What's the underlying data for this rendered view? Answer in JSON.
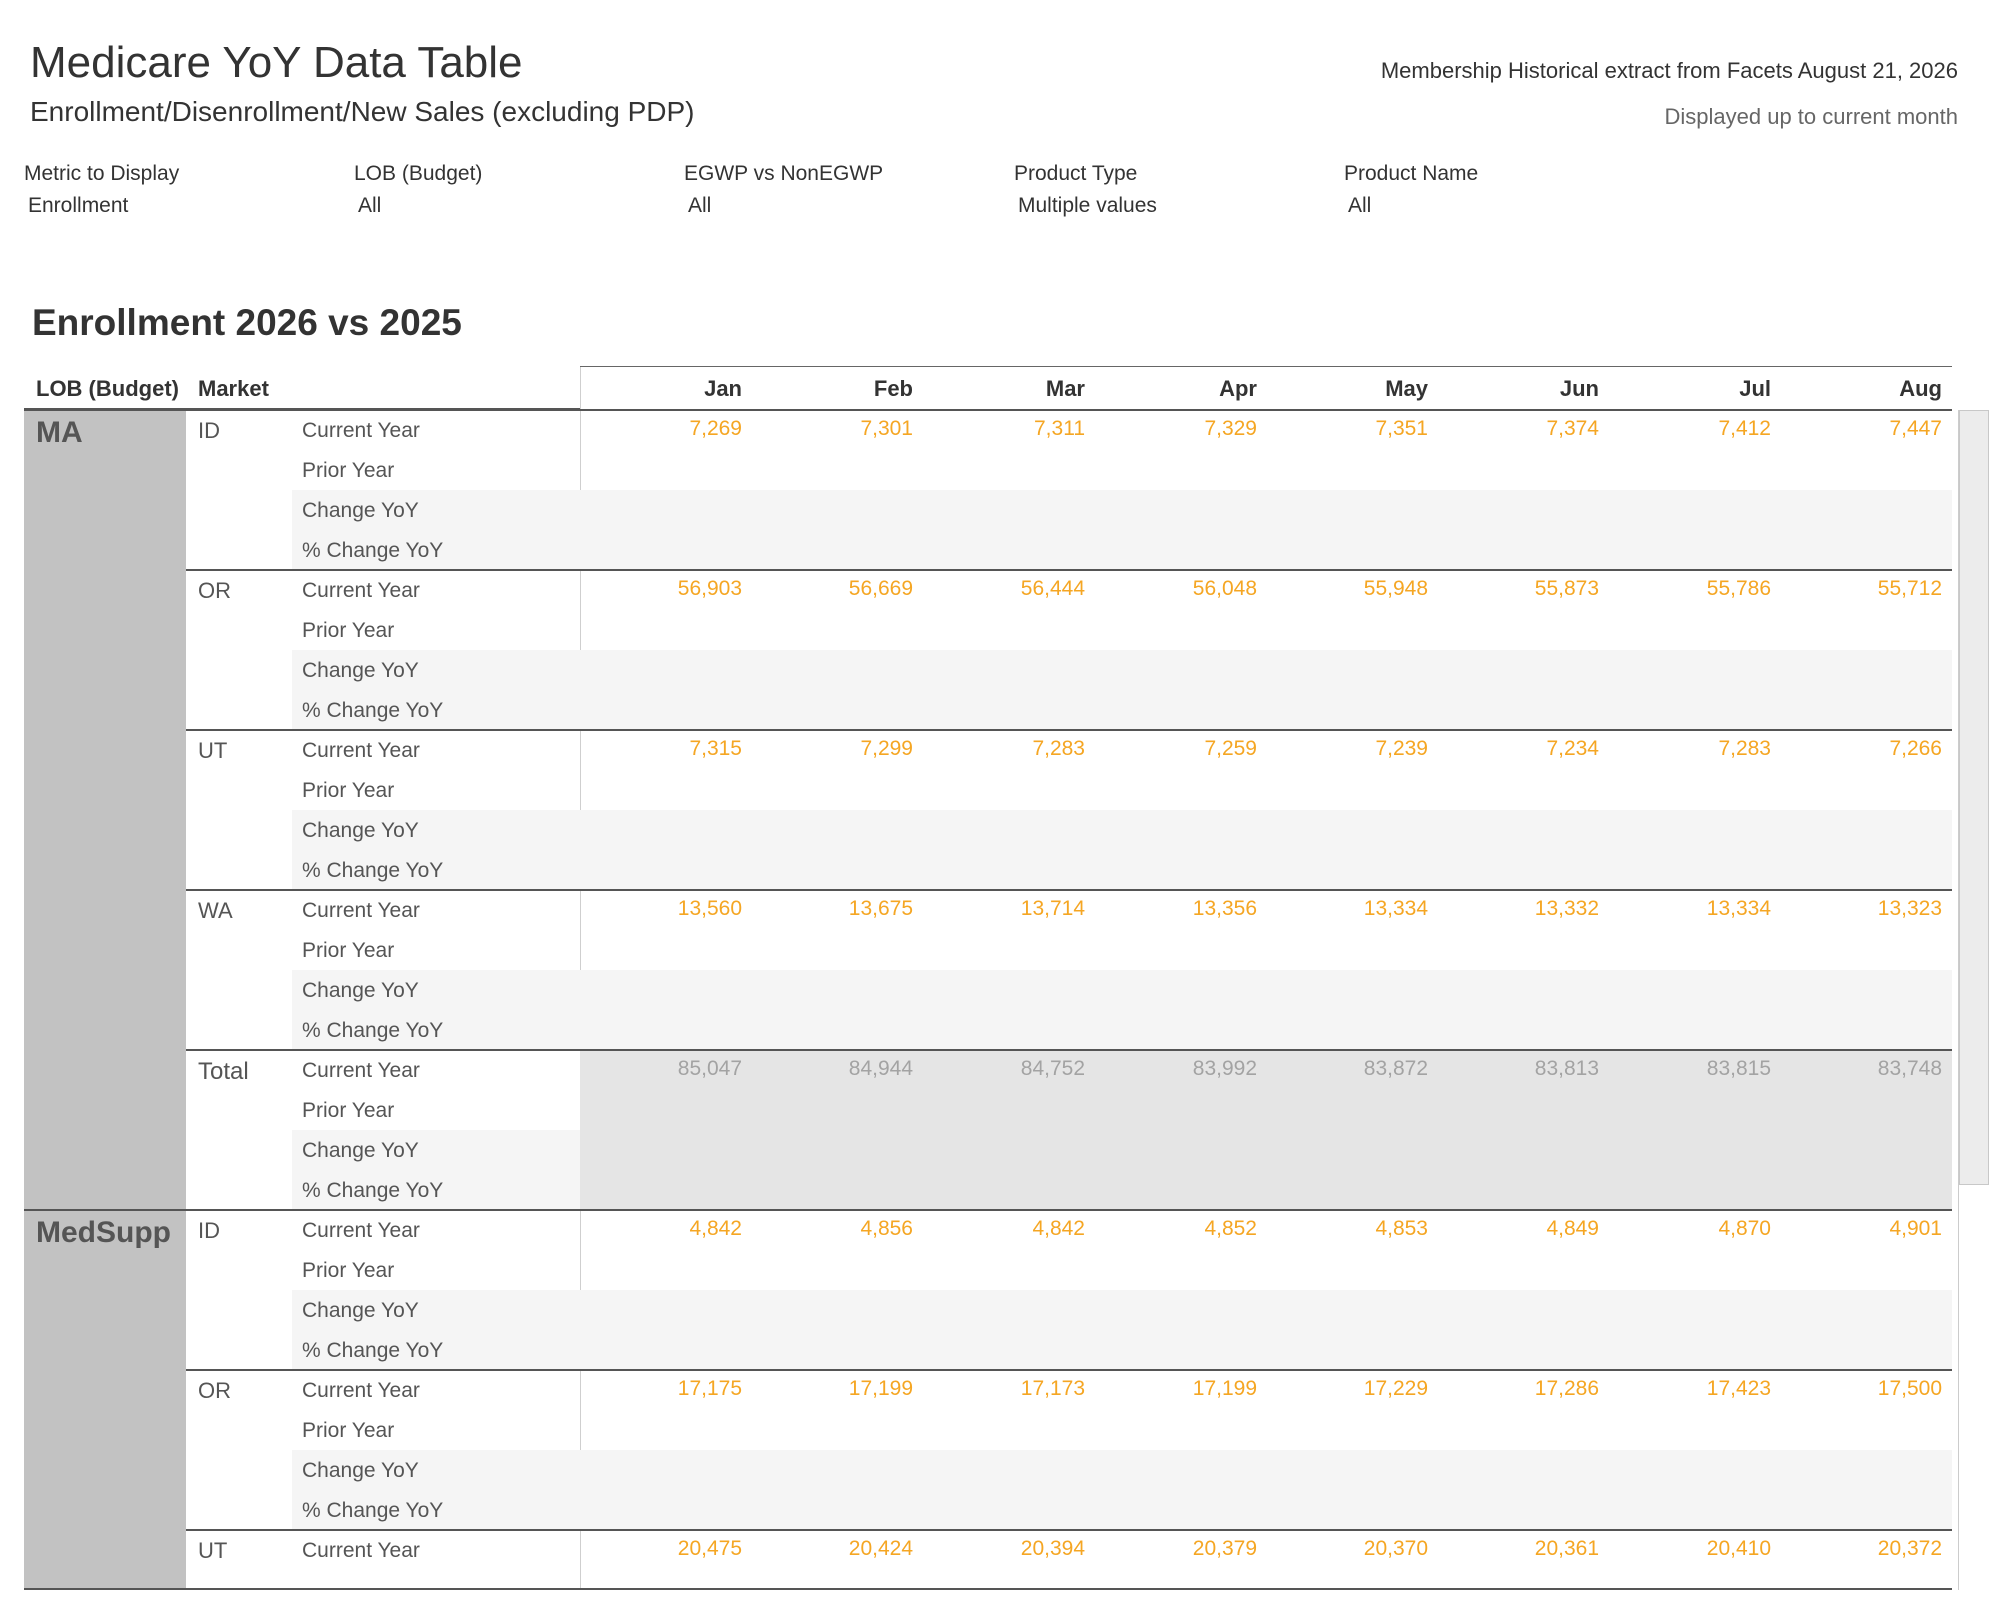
{
  "header": {
    "title": "Medicare YoY Data Table",
    "subtitle": "Enrollment/Disenrollment/New Sales (excluding PDP)",
    "extract_note": "Membership Historical extract from Facets August 21, 2026",
    "displayed_note": "Displayed up to current month"
  },
  "filters": [
    {
      "label": "Metric to Display",
      "value": "Enrollment"
    },
    {
      "label": "LOB (Budget)",
      "value": "All"
    },
    {
      "label": "EGWP vs NonEGWP",
      "value": "All"
    },
    {
      "label": "Product Type",
      "value": "Multiple values"
    },
    {
      "label": "Product Name",
      "value": "All"
    }
  ],
  "table": {
    "section_title": "Enrollment 2026 vs 2025",
    "col_lob": "LOB (Budget)",
    "col_market": "Market",
    "months": [
      "Jan",
      "Feb",
      "Mar",
      "Apr",
      "May",
      "Jun",
      "Jul",
      "Aug"
    ],
    "row_labels": [
      "Current Year",
      "Prior Year",
      "Change YoY",
      "% Change YoY"
    ],
    "groups": [
      {
        "lob": "MA",
        "markets": [
          {
            "name": "ID",
            "current": [
              "7,269",
              "7,301",
              "7,311",
              "7,329",
              "7,351",
              "7,374",
              "7,412",
              "7,447"
            ]
          },
          {
            "name": "OR",
            "current": [
              "56,903",
              "56,669",
              "56,444",
              "56,048",
              "55,948",
              "55,873",
              "55,786",
              "55,712"
            ]
          },
          {
            "name": "UT",
            "current": [
              "7,315",
              "7,299",
              "7,283",
              "7,259",
              "7,239",
              "7,234",
              "7,283",
              "7,266"
            ]
          },
          {
            "name": "WA",
            "current": [
              "13,560",
              "13,675",
              "13,714",
              "13,356",
              "13,334",
              "13,332",
              "13,334",
              "13,323"
            ]
          },
          {
            "name": "Total",
            "is_total": true,
            "current": [
              "85,047",
              "84,944",
              "84,752",
              "83,992",
              "83,872",
              "83,813",
              "83,815",
              "83,748"
            ]
          }
        ]
      },
      {
        "lob": "MedSupp",
        "markets": [
          {
            "name": "ID",
            "current": [
              "4,842",
              "4,856",
              "4,842",
              "4,852",
              "4,853",
              "4,849",
              "4,870",
              "4,901"
            ]
          },
          {
            "name": "OR",
            "current": [
              "17,175",
              "17,199",
              "17,173",
              "17,199",
              "17,229",
              "17,286",
              "17,423",
              "17,500"
            ]
          },
          {
            "name": "UT",
            "current": [
              "20,475",
              "20,424",
              "20,394",
              "20,379",
              "20,370",
              "20,361",
              "20,410",
              "20,372"
            ]
          }
        ]
      }
    ]
  },
  "colors": {
    "value": "#f5a623",
    "total_value": "#a3a3a3",
    "lob_band": "#c2c2c2",
    "total_bg": "#e5e5e5",
    "alt_row": "#f5f5f5"
  }
}
